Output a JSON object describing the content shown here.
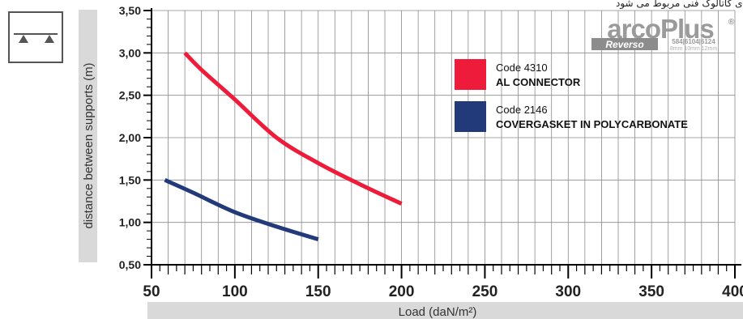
{
  "header_note": "مقادیر زیر به محصولات نصب شده بر طبق توصیه های کاتالوگ فنی مربوط می شود",
  "brand": {
    "logo_text": "arcoPlus",
    "registered_mark": "®",
    "sub_badge": "Reverso",
    "codes": "584|6104|6124",
    "thicknesses": "8mm 10mm 12mm"
  },
  "colors": {
    "series_red": "#EE1C3A",
    "series_blue": "#233A7A",
    "axis_band": "#D9D9D9",
    "grid": "#8A8A8A"
  },
  "icon": {
    "name": "simply-supported-beam-icon"
  },
  "chart_data": {
    "type": "line",
    "xlabel": "Load (daN/m²)",
    "ylabel": "distance between supports (m)",
    "xlim": [
      50,
      400
    ],
    "ylim": [
      0.5,
      3.5
    ],
    "x_ticks": [
      "50",
      "100",
      "150",
      "200",
      "250",
      "300",
      "350",
      "400"
    ],
    "y_ticks": [
      "0,50",
      "1,00",
      "1,50",
      "2,00",
      "2,50",
      "3,00",
      "3,50"
    ],
    "grid": true,
    "legend_position": "right",
    "series": [
      {
        "code": "Code 4310",
        "name": "AL CONNECTOR",
        "color": "#EE1C3A",
        "x": [
          70,
          80,
          100,
          125,
          150,
          175,
          200
        ],
        "y": [
          3.0,
          2.8,
          2.45,
          2.0,
          1.7,
          1.45,
          1.22
        ]
      },
      {
        "code": "Code 2146",
        "name": "COVERGASKET IN POLYCARBONATE",
        "color": "#233A7A",
        "x": [
          58,
          75,
          100,
          125,
          150
        ],
        "y": [
          1.5,
          1.35,
          1.12,
          0.95,
          0.8
        ]
      }
    ]
  }
}
